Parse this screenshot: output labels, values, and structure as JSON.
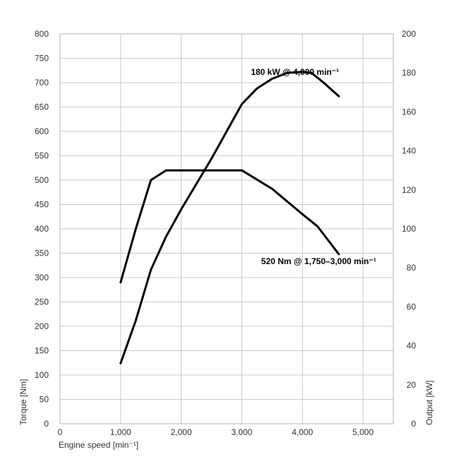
{
  "chart_data": {
    "type": "line",
    "grid": true,
    "x_axis": {
      "label": "Engine speed [min⁻¹]",
      "range": [
        0,
        5500
      ],
      "ticks": [
        0,
        1000,
        2000,
        3000,
        4000,
        5000
      ],
      "tick_labels": [
        "0",
        "1,000",
        "2,000",
        "3,000",
        "4,000",
        "5,000"
      ]
    },
    "y_left_axis": {
      "label": "Torque [Nm]",
      "range": [
        0,
        800
      ],
      "ticks": [
        0,
        50,
        100,
        150,
        200,
        250,
        300,
        350,
        400,
        450,
        500,
        550,
        600,
        650,
        700,
        750,
        800
      ],
      "tick_labels": [
        "0",
        "50",
        "100",
        "150",
        "200",
        "250",
        "300",
        "350",
        "400",
        "450",
        "500",
        "550",
        "600",
        "650",
        "700",
        "750",
        "800"
      ]
    },
    "y_right_axis": {
      "label": "Output [kW]",
      "range": [
        0,
        200
      ],
      "ticks": [
        0,
        20,
        40,
        60,
        80,
        100,
        120,
        140,
        160,
        180,
        200
      ],
      "tick_labels": [
        "0",
        "20",
        "40",
        "60",
        "80",
        "100",
        "120",
        "140",
        "160",
        "180",
        "200"
      ]
    },
    "series": [
      {
        "axis": "left",
        "x": [
          1000,
          1250,
          1500,
          1750,
          2000,
          2500,
          3000,
          3500,
          4000,
          4250,
          4600
        ],
        "y": [
          290,
          400,
          500,
          520,
          520,
          520,
          520,
          482,
          430,
          405,
          348
        ]
      },
      {
        "axis": "right",
        "x": [
          1000,
          1250,
          1500,
          1750,
          2000,
          2500,
          3000,
          3250,
          3500,
          3750,
          4000,
          4150,
          4350,
          4600
        ],
        "y": [
          31,
          53,
          79,
          96,
          110,
          136,
          164,
          172,
          177,
          180,
          180.5,
          180,
          175,
          168
        ]
      }
    ],
    "annotations": [
      {
        "text": "180 kW @ 4,000 min⁻¹",
        "x": 3150,
        "y_left": 722
      },
      {
        "text": "520 Nm @ 1,750–3,000 min⁻¹",
        "x": 3320,
        "y_left": 333
      }
    ]
  }
}
